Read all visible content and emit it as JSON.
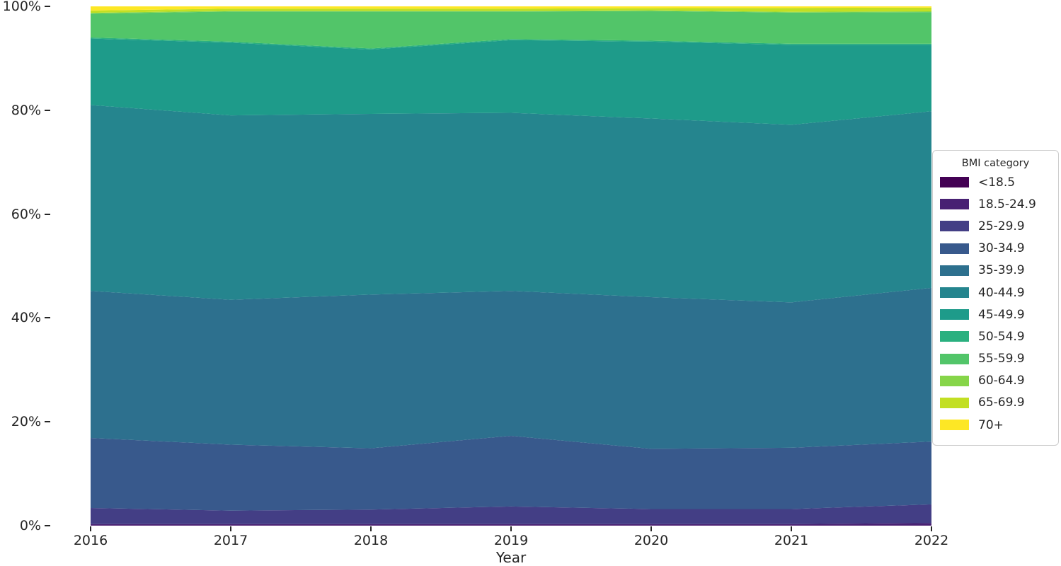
{
  "figure": {
    "background_color": "#ffffff",
    "x_axis_title": "Year"
  },
  "y_axis": {
    "tick_labels": [
      "0%",
      "20%",
      "40%",
      "60%",
      "80%",
      "100%"
    ],
    "tick_values": [
      0,
      20,
      40,
      60,
      80,
      100
    ]
  },
  "x_axis": {
    "tick_labels": [
      "2016",
      "2017",
      "2018",
      "2019",
      "2020",
      "2021",
      "2022"
    ],
    "tick_values": [
      2016,
      2017,
      2018,
      2019,
      2020,
      2021,
      2022
    ]
  },
  "legend": {
    "title": "BMI category",
    "position": "right",
    "items_top_to_bottom": [
      "<18.5",
      "18.5-24.9",
      "25-29.9",
      "30-34.9",
      "35-39.9",
      "40-44.9",
      "45-49.9",
      "50-54.9",
      "55-59.9",
      "60-64.9",
      "65-69.9",
      "70+"
    ]
  },
  "chart_data": {
    "type": "area",
    "variant": "100%-stacked",
    "title": "",
    "xlabel": "Year",
    "ylabel": "",
    "ylim": [
      0,
      100
    ],
    "grid": false,
    "legend_position": "right",
    "x": [
      2016,
      2017,
      2018,
      2019,
      2020,
      2021,
      2022
    ],
    "series": [
      {
        "name": "<18.5",
        "color": "#440154",
        "values": [
          0.05,
          0.05,
          0.05,
          0.05,
          0.05,
          0.05,
          0.05
        ]
      },
      {
        "name": "18.5-24.9",
        "color": "#482173",
        "values": [
          0.25,
          0.25,
          0.25,
          0.25,
          0.25,
          0.25,
          0.45
        ]
      },
      {
        "name": "25-29.9",
        "color": "#433e85",
        "values": [
          3.1,
          2.6,
          2.8,
          3.4,
          2.9,
          2.9,
          3.6
        ]
      },
      {
        "name": "30-34.9",
        "color": "#38598c",
        "values": [
          13.5,
          12.7,
          11.8,
          13.6,
          11.6,
          11.8,
          12.1
        ]
      },
      {
        "name": "35-39.9",
        "color": "#2d708e",
        "values": [
          28.3,
          27.9,
          29.6,
          27.9,
          29.2,
          28.0,
          29.6
        ]
      },
      {
        "name": "40-44.9",
        "color": "#25858e",
        "values": [
          35.8,
          35.5,
          34.8,
          34.3,
          34.4,
          34.2,
          34.0
        ]
      },
      {
        "name": "45-49.9",
        "color": "#1e9b8a",
        "values": [
          12.8,
          14.0,
          12.4,
          14.0,
          14.8,
          15.4,
          12.8
        ]
      },
      {
        "name": "50-54.9",
        "color": "#2ab07f",
        "values": [
          0.2,
          0.2,
          0.2,
          0.2,
          0.2,
          0.2,
          0.2
        ]
      },
      {
        "name": "55-59.9",
        "color": "#52c569",
        "values": [
          4.6,
          5.8,
          7.1,
          5.3,
          5.7,
          6.0,
          6.1
        ]
      },
      {
        "name": "60-64.9",
        "color": "#86d549",
        "values": [
          0.15,
          0.15,
          0.15,
          0.15,
          0.15,
          0.15,
          0.15
        ]
      },
      {
        "name": "65-69.9",
        "color": "#c2df23",
        "values": [
          0.45,
          0.4,
          0.4,
          0.4,
          0.4,
          0.75,
          0.7
        ]
      },
      {
        "name": "70+",
        "color": "#fde725",
        "values": [
          0.8,
          0.45,
          0.45,
          0.45,
          0.35,
          0.3,
          0.25
        ]
      }
    ]
  }
}
